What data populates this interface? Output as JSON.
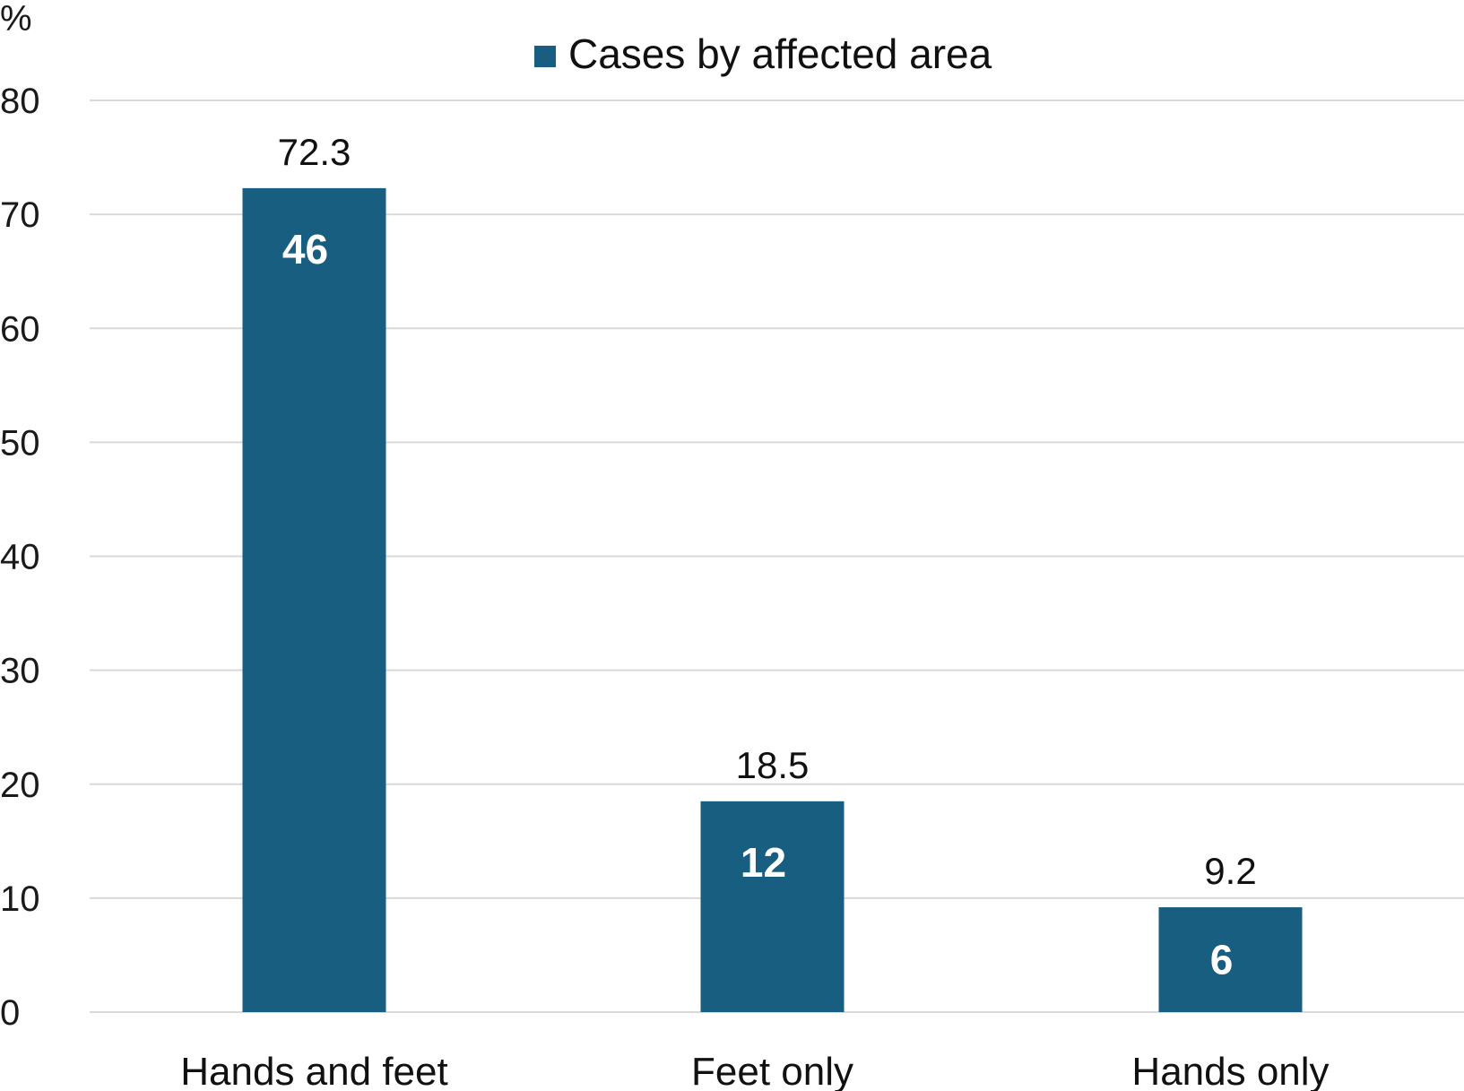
{
  "chart_data": {
    "type": "bar",
    "y_unit_label": "%",
    "ylim": [
      0,
      80
    ],
    "yticks": [
      0,
      10,
      20,
      30,
      40,
      50,
      60,
      70,
      80
    ],
    "grid": true,
    "legend_position": "top-center",
    "categories": [
      "Hands and feet",
      "Feet only",
      "Hands only"
    ],
    "series": [
      {
        "name": "Cases by affected area",
        "color": "#175e80",
        "values": [
          72.3,
          18.5,
          9.2
        ],
        "value_labels": [
          "72.3",
          "18.5",
          "9.2"
        ],
        "counts": [
          "46",
          "12",
          "6"
        ]
      }
    ]
  }
}
